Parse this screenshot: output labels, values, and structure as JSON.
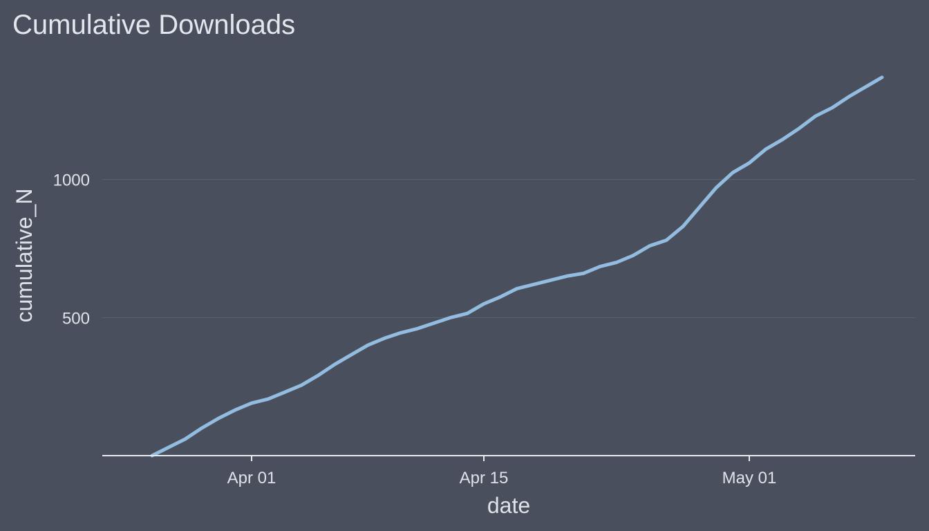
{
  "chart_data": {
    "type": "line",
    "title": "Cumulative Downloads",
    "xlabel": "date",
    "ylabel": "cumulative_N",
    "x_ticks": [
      {
        "date": "2024-04-01",
        "label": "Apr 01"
      },
      {
        "date": "2024-04-15",
        "label": "Apr 15"
      },
      {
        "date": "2024-05-01",
        "label": "May 01"
      }
    ],
    "y_ticks": [
      500,
      1000
    ],
    "xlim": [
      "2024-03-23",
      "2024-05-11"
    ],
    "ylim": [
      0,
      1500
    ],
    "grid": "horizontal major",
    "line_color": "#93bde0",
    "series": [
      {
        "x": [
          "2024-03-26",
          "2024-03-27",
          "2024-03-28",
          "2024-03-29",
          "2024-03-30",
          "2024-03-31",
          "2024-04-01",
          "2024-04-02",
          "2024-04-03",
          "2024-04-04",
          "2024-04-05",
          "2024-04-06",
          "2024-04-07",
          "2024-04-08",
          "2024-04-09",
          "2024-04-10",
          "2024-04-11",
          "2024-04-12",
          "2024-04-13",
          "2024-04-14",
          "2024-04-15",
          "2024-04-16",
          "2024-04-17",
          "2024-04-18",
          "2024-04-19",
          "2024-04-20",
          "2024-04-21",
          "2024-04-22",
          "2024-04-23",
          "2024-04-24",
          "2024-04-25",
          "2024-04-26",
          "2024-04-27",
          "2024-04-28",
          "2024-04-29",
          "2024-04-30",
          "2024-05-01",
          "2024-05-02",
          "2024-05-03",
          "2024-05-04",
          "2024-05-05",
          "2024-05-06",
          "2024-05-07",
          "2024-05-08",
          "2024-05-09"
        ],
        "y": [
          0,
          30,
          60,
          100,
          135,
          165,
          190,
          205,
          230,
          255,
          290,
          330,
          365,
          400,
          425,
          445,
          460,
          480,
          500,
          515,
          550,
          575,
          605,
          620,
          635,
          650,
          660,
          685,
          700,
          725,
          760,
          780,
          830,
          900,
          970,
          1025,
          1060,
          1110,
          1145,
          1185,
          1230,
          1260,
          1300,
          1335,
          1370
        ]
      }
    ]
  }
}
